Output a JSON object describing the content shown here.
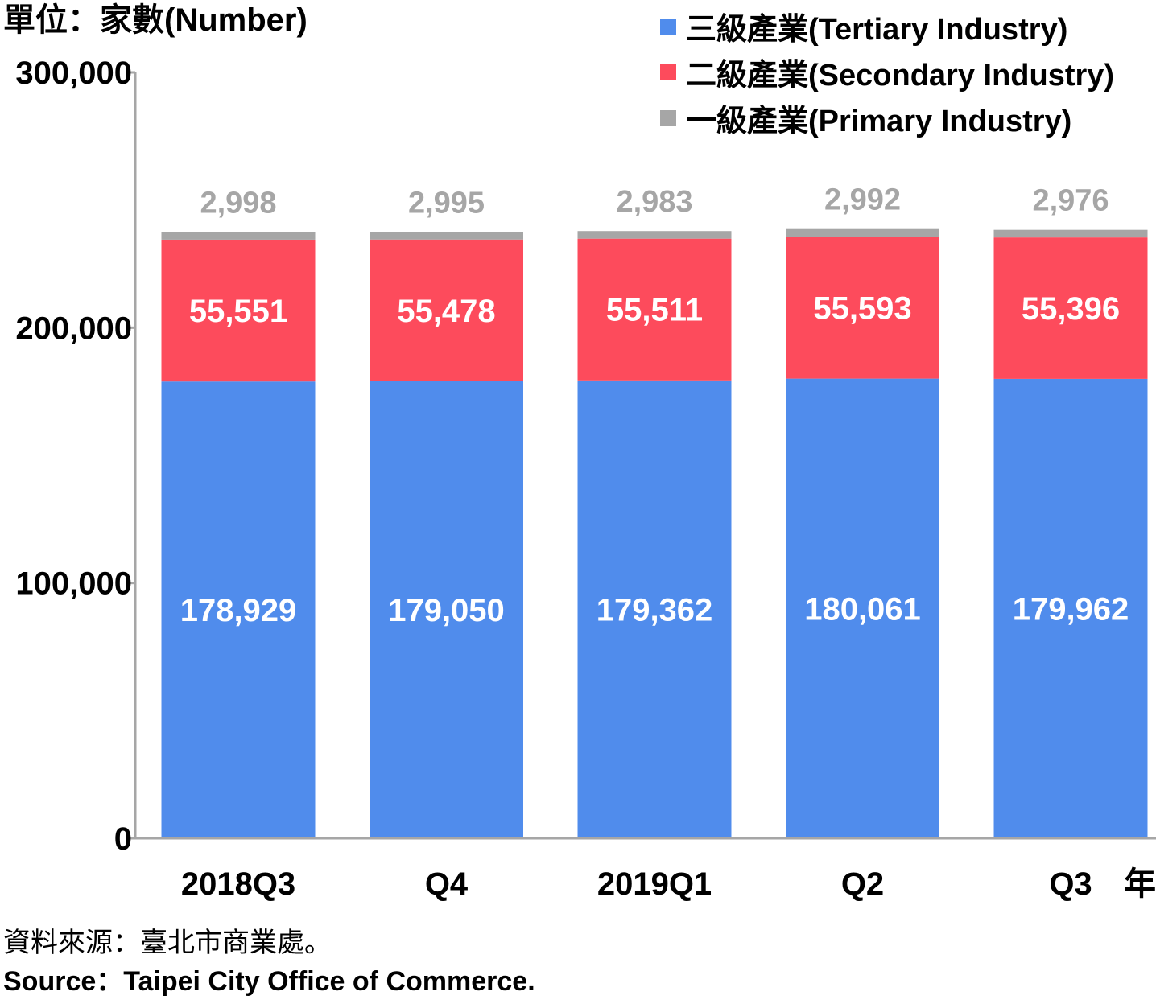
{
  "unit_label": "單位：家數(Number)",
  "source_zh": "資料來源：臺北市商業處。",
  "source_en": "Source：Taipei City Office of Commerce.",
  "colors": {
    "tertiary": "#508CEC",
    "secondary": "#FD4B5C",
    "primary": "#A6A6A6",
    "axis": "#A6A6A6",
    "inner_label": "#ffffff",
    "top_label": "#A6A6A6"
  },
  "chart_data": {
    "type": "bar",
    "stacked": true,
    "categories": [
      "2018Q3",
      "Q4",
      "2019Q1",
      "Q2",
      "Q3"
    ],
    "x_axis_suffix": "年",
    "ylim": [
      0,
      300000
    ],
    "yticks": [
      "0",
      "100,000",
      "200,000",
      "300,000"
    ],
    "ytick_values": [
      0,
      100000,
      200000,
      300000
    ],
    "grid": false,
    "legend_position": "top-right",
    "series": [
      {
        "key": "tertiary",
        "name": "三級產業(Tertiary Industry)",
        "values": [
          178929,
          179050,
          179362,
          180061,
          179962
        ],
        "labels": [
          "178,929",
          "179,050",
          "179,362",
          "180,061",
          "179,962"
        ]
      },
      {
        "key": "secondary",
        "name": "二級產業(Secondary Industry)",
        "values": [
          55551,
          55478,
          55511,
          55593,
          55396
        ],
        "labels": [
          "55,551",
          "55,478",
          "55,511",
          "55,593",
          "55,396"
        ]
      },
      {
        "key": "primary",
        "name": "一級產業(Primary Industry)",
        "values": [
          2998,
          2995,
          2983,
          2992,
          2976
        ],
        "labels": [
          "2,998",
          "2,995",
          "2,983",
          "2,992",
          "2,976"
        ]
      }
    ]
  }
}
